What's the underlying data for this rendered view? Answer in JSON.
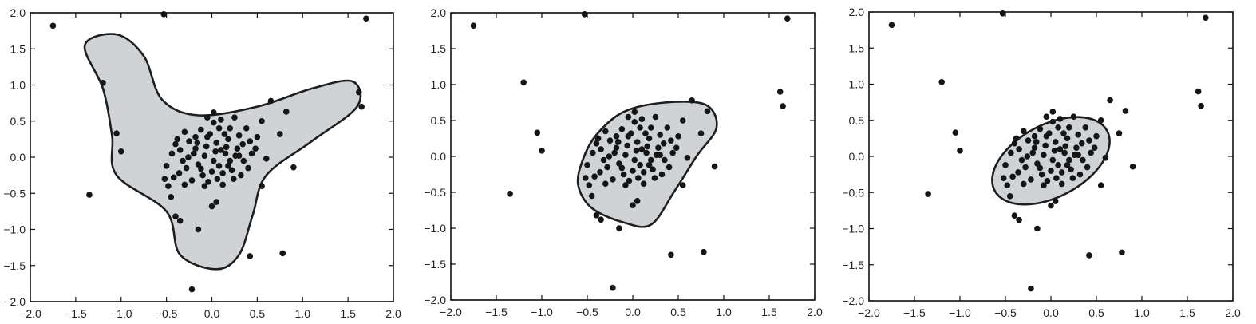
{
  "chart_data": [
    {
      "type": "scatter",
      "panel": "left",
      "title": "",
      "xlabel": "",
      "ylabel": "",
      "xlim": [
        -2.0,
        2.0
      ],
      "ylim": [
        -2.0,
        2.0
      ],
      "xticks": [
        "-2.0",
        "-1.5",
        "-1.0",
        "-0.5",
        "0.0",
        "0.5",
        "1.0",
        "1.5",
        "2.0"
      ],
      "yticks": [
        "-2.0",
        "-1.5",
        "-1.0",
        "-0.5",
        "0.0",
        "0.5",
        "1.0",
        "1.5",
        "2.0"
      ],
      "grid": false,
      "region_fill": "#d0d3d6",
      "region_boundary": [
        [
          -1.4,
          1.55
        ],
        [
          -1.05,
          1.7
        ],
        [
          -0.75,
          1.4
        ],
        [
          -0.55,
          0.8
        ],
        [
          -0.15,
          0.58
        ],
        [
          0.5,
          0.7
        ],
        [
          1.1,
          0.95
        ],
        [
          1.55,
          1.05
        ],
        [
          1.6,
          0.7
        ],
        [
          1.1,
          0.22
        ],
        [
          0.6,
          -0.25
        ],
        [
          0.45,
          -0.8
        ],
        [
          0.3,
          -1.35
        ],
        [
          0.05,
          -1.55
        ],
        [
          -0.35,
          -1.35
        ],
        [
          -0.5,
          -0.75
        ],
        [
          -1.05,
          -0.25
        ],
        [
          -1.1,
          0.3
        ],
        [
          -1.2,
          0.95
        ],
        [
          -1.4,
          1.55
        ]
      ]
    },
    {
      "type": "scatter",
      "panel": "middle",
      "title": "",
      "xlabel": "",
      "ylabel": "",
      "xlim": [
        -2.0,
        2.0
      ],
      "ylim": [
        -2.0,
        2.0
      ],
      "xticks": [
        "-2.0",
        "-1.5",
        "-1.0",
        "-0.5",
        "0.0",
        "0.5",
        "1.0",
        "1.5",
        "2.0"
      ],
      "yticks": [
        "-2.0",
        "-1.5",
        "-1.0",
        "-0.5",
        "0.0",
        "0.5",
        "1.0",
        "1.5",
        "2.0"
      ],
      "grid": false,
      "region_fill": "#d0d3d6",
      "region_boundary": [
        [
          -0.55,
          -0.05
        ],
        [
          -0.4,
          0.3
        ],
        [
          -0.1,
          0.62
        ],
        [
          0.35,
          0.75
        ],
        [
          0.8,
          0.72
        ],
        [
          0.92,
          0.4
        ],
        [
          0.7,
          0.0
        ],
        [
          0.45,
          -0.5
        ],
        [
          0.2,
          -0.95
        ],
        [
          -0.1,
          -0.92
        ],
        [
          -0.45,
          -0.72
        ],
        [
          -0.6,
          -0.4
        ],
        [
          -0.55,
          -0.05
        ]
      ]
    },
    {
      "type": "scatter",
      "panel": "right",
      "title": "",
      "xlabel": "",
      "ylabel": "",
      "xlim": [
        -2.0,
        2.0
      ],
      "ylim": [
        -2.0,
        2.0
      ],
      "xticks": [
        "-2.0",
        "-1.5",
        "-1.0",
        "-0.5",
        "0.0",
        "0.5",
        "1.0",
        "1.5",
        "2.0"
      ],
      "yticks": [
        "-2.0",
        "-1.5",
        "-1.0",
        "-0.5",
        "0.0",
        "0.5",
        "1.0",
        "1.5",
        "2.0"
      ],
      "grid": false,
      "region_fill": "#d0d3d6",
      "region_boundary": {
        "shape": "ellipse",
        "center": [
          0.0,
          -0.06
        ],
        "semi_axes": [
          0.7,
          0.5
        ],
        "rotation_deg": 28
      }
    }
  ],
  "scatter_points": [
    [
      -1.75,
      1.82
    ],
    [
      -0.53,
      1.98
    ],
    [
      1.7,
      1.92
    ],
    [
      -1.2,
      1.03
    ],
    [
      -1.05,
      0.33
    ],
    [
      -1.0,
      0.08
    ],
    [
      -1.35,
      -0.52
    ],
    [
      1.62,
      0.9
    ],
    [
      1.65,
      0.7
    ],
    [
      0.9,
      -0.14
    ],
    [
      0.65,
      0.78
    ],
    [
      0.82,
      0.63
    ],
    [
      0.75,
      0.32
    ],
    [
      0.55,
      -0.4
    ],
    [
      0.42,
      -1.37
    ],
    [
      0.78,
      -1.33
    ],
    [
      -0.22,
      -1.83
    ],
    [
      -0.15,
      -1.0
    ],
    [
      -0.4,
      -0.82
    ],
    [
      -0.35,
      -0.88
    ],
    [
      0.0,
      -0.68
    ],
    [
      0.05,
      -0.62
    ],
    [
      0.3,
      0.02
    ],
    [
      -0.32,
      -0.05
    ],
    [
      -0.18,
      0.12
    ],
    [
      -0.05,
      0.28
    ],
    [
      0.08,
      0.4
    ],
    [
      0.15,
      0.05
    ],
    [
      0.22,
      -0.18
    ],
    [
      -0.1,
      -0.25
    ],
    [
      0.02,
      -0.05
    ],
    [
      -0.25,
      0.22
    ],
    [
      0.3,
      0.3
    ],
    [
      -0.42,
      -0.28
    ],
    [
      0.12,
      -0.38
    ],
    [
      -0.05,
      0.55
    ],
    [
      0.25,
      0.55
    ],
    [
      -0.3,
      0.35
    ],
    [
      0.35,
      -0.05
    ],
    [
      0.05,
      0.2
    ],
    [
      -0.15,
      -0.1
    ],
    [
      0.1,
      0.1
    ],
    [
      -0.2,
      0.05
    ],
    [
      0.18,
      0.25
    ],
    [
      -0.08,
      -0.4
    ],
    [
      0.28,
      0.12
    ],
    [
      -0.35,
      0.1
    ],
    [
      0.42,
      0.22
    ],
    [
      -0.48,
      -0.4
    ],
    [
      0.48,
      0.12
    ],
    [
      -0.12,
      0.38
    ],
    [
      0.0,
      -0.2
    ],
    [
      0.2,
      -0.05
    ],
    [
      -0.28,
      -0.15
    ],
    [
      0.08,
      -0.12
    ],
    [
      -0.06,
      0.15
    ],
    [
      0.14,
      0.32
    ],
    [
      -0.22,
      -0.32
    ],
    [
      0.38,
      0.4
    ],
    [
      -0.4,
      0.18
    ],
    [
      0.02,
      0.48
    ],
    [
      0.32,
      -0.25
    ],
    [
      -0.18,
      0.28
    ],
    [
      0.24,
      -0.3
    ],
    [
      -0.5,
      -0.12
    ],
    [
      0.5,
      0.28
    ],
    [
      -0.08,
      0.02
    ],
    [
      0.06,
      -0.3
    ],
    [
      0.16,
      0.14
    ],
    [
      -0.26,
      0.0
    ],
    [
      0.1,
      0.52
    ],
    [
      -0.36,
      -0.22
    ],
    [
      0.44,
      0.05
    ],
    [
      -0.12,
      -0.16
    ],
    [
      0.2,
      0.4
    ],
    [
      -0.02,
      0.32
    ],
    [
      0.12,
      -0.22
    ],
    [
      -0.3,
      -0.38
    ],
    [
      0.34,
      0.18
    ],
    [
      -0.44,
      0.05
    ],
    [
      0.04,
      0.08
    ],
    [
      -0.16,
      0.2
    ],
    [
      0.26,
      0.02
    ],
    [
      -0.04,
      -0.34
    ],
    [
      0.18,
      -0.12
    ],
    [
      -0.38,
      0.25
    ],
    [
      0.55,
      0.5
    ],
    [
      -0.45,
      -0.55
    ],
    [
      0.02,
      0.62
    ],
    [
      0.6,
      -0.02
    ],
    [
      -0.52,
      -0.3
    ],
    [
      0.4,
      -0.15
    ]
  ],
  "colors": {
    "points": "#151515",
    "region_fill": "#d0d3d6",
    "region_stroke": "#1e1e1e",
    "axes": "#111111"
  }
}
